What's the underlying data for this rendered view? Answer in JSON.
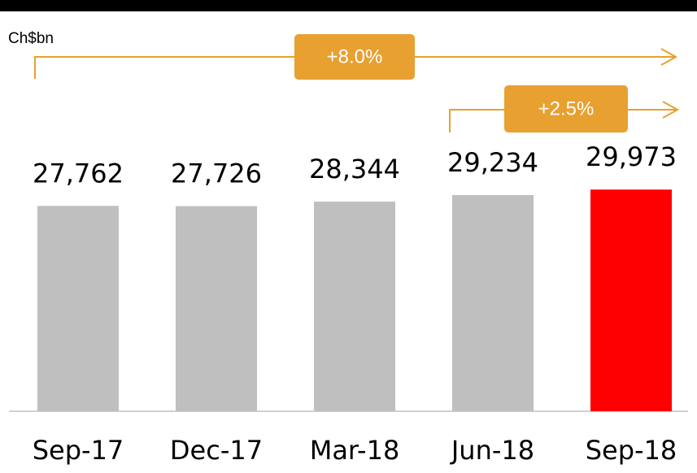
{
  "chart_data": {
    "type": "bar",
    "unit_label": "Ch$bn",
    "categories": [
      "Sep-17",
      "Dec-17",
      "Mar-18",
      "Jun-18",
      "Sep-18"
    ],
    "values": [
      27762,
      27726,
      28344,
      29234,
      29973
    ],
    "value_labels": [
      "27,762",
      "27,726",
      "28,344",
      "29,234",
      "29,973"
    ],
    "colors": [
      "#bfbfbf",
      "#bfbfbf",
      "#bfbfbf",
      "#bfbfbf",
      "#ff0000"
    ],
    "ylim": [
      0,
      30000
    ],
    "annotations": [
      "+8.0%",
      "+2.5%"
    ]
  }
}
